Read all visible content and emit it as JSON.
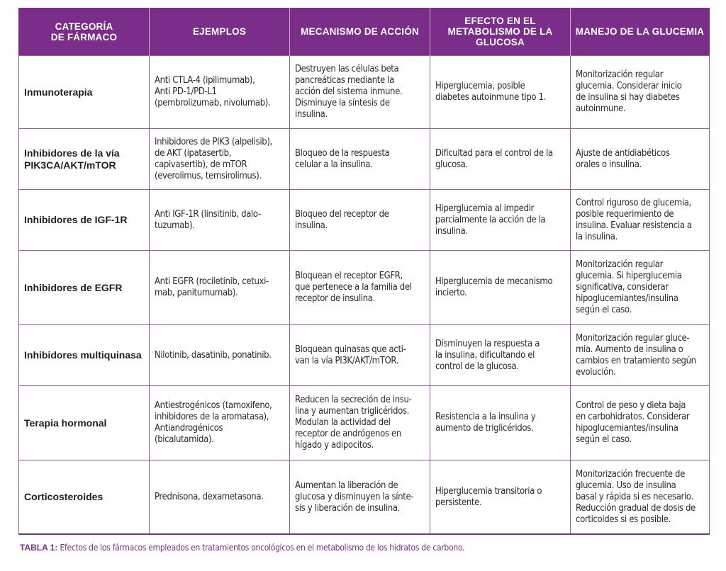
{
  "table": {
    "headers": [
      "CATEGORÍA\nDE FÁRMACO",
      "EJEMPLOS",
      "MECANISMO DE ACCIÓN",
      "EFECTO EN EL\nMETABOLISMO DE LA\nGLUCOSA",
      "MANEJO DE LA GLUCEMIA"
    ],
    "rows": [
      {
        "categoria": "Inmunoterapia",
        "ejemplos": "Anti CTLA-4 (ipilimumab),\nAnti PD-1/PD-L1\n(pembrolizumab, nivolumab).",
        "mecanismo": "Destruyen las células beta\npancreáticas mediante la\nacción del sistema inmune.\nDisminuye la síntesis de\ninsulina.",
        "efecto": "Hiperglucemia, posible\ndiabetes autoinmune tipo 1.",
        "manejo": "Monitorización regular\nglucemia. Considerar inicio\nde insulina si hay diabetes\nautoinmune."
      },
      {
        "categoria": "Inhibidores de la vía\nPIK3CA/AKT/mTOR",
        "ejemplos": "Inhibidores de PIK3 (alpelisib),\nde AKT (ipatasertib,\ncapivasertib), de mTOR\n(everolimus, temsirolimus).",
        "mecanismo": "Bloqueo de la respuesta\ncelular a la insulina.",
        "efecto": "Dificultad para el control de la\nglucosa.",
        "manejo": "Ajuste de antidiabéticos\norales o insulina."
      },
      {
        "categoria": "Inhibidores de IGF-1R",
        "ejemplos": "Anti IGF-1R (linsitinib, dalo-\ntuzumab).",
        "mecanismo": "Bloqueo del receptor de\ninsulina.",
        "efecto": "Hiperglucemia al impedir\nparcialmente la acción de la\ninsulina.",
        "manejo": "Control riguroso de glucemia,\nposible requerimiento de\ninsulina. Evaluar resistencia a\nla insulina."
      },
      {
        "categoria": "Inhibidores de EGFR",
        "ejemplos": "Anti EGFR (rociletinib, cetuxi-\nmab, panitumumab).",
        "mecanismo": "Bloquean el receptor EGFR,\nque pertenece a la familia del\nreceptor de insulina.",
        "efecto": "Hiperglucemia de mecanismo\nincierto.",
        "manejo": "Monitorización regular\nglucemia. Si hiperglucemia\nsignificativa, considerar\nhipoglucemiantes/insulina\nsegún el caso."
      },
      {
        "categoria": "Inhibidores multiquinasa",
        "ejemplos": "Nilotinib, dasatinib, ponatinib.",
        "mecanismo": "Bloquean quinasas que acti-\nvan la vía PI3K/AKT/mTOR.",
        "efecto": "Disminuyen la respuesta a\nla insulina, dificultando el\ncontrol de la glucosa.",
        "manejo": "Monitorización regular gluce-\nmia. Aumento de insulina o\ncambios en tratamiento según\nevolución."
      },
      {
        "categoria": "Terapia hormonal",
        "ejemplos": "Antiestrogénicos (tamoxifeno,\ninhibidores de la aromatasa),\nAntiandrogénicos\n(bicalutamida).",
        "mecanismo": "Reducen la secreción de insu-\nlina y aumentan triglicéridos.\nModulan la actividad del\nreceptor de andrógenos en\nhígado y adipocitos.",
        "efecto": "Resistencia a la insulina y\naumento de triglicéridos.",
        "manejo": "Control de peso y dieta baja\nen carbohidratos. Considerar\nhipoglucemiantes/insulina\nsegún el caso."
      },
      {
        "categoria": "Corticosteroides",
        "ejemplos": "Prednisona, dexametasona.",
        "mecanismo": "Aumentan la liberación de\nglucosa y disminuyen la sínte-\nsis y liberación de insulina.",
        "efecto": "Hiperglucemia transitoria o\npersistente.",
        "manejo": "Monitorización frecuente de\nglucemia. Uso de insulina\nbasal y rápida si es necesario.\nReducción gradual de dosis de\ncorticoides si es posible."
      }
    ]
  },
  "caption": {
    "label": "TABLA 1:",
    "text": " Efectos de los fármacos empleados en tratamientos oncológicos en el metabolismo de los hidratos de carbono."
  },
  "colors": {
    "header_bg": "#7a2e8a",
    "border": "#9a5aa5",
    "caption": "#7a2e8a"
  }
}
